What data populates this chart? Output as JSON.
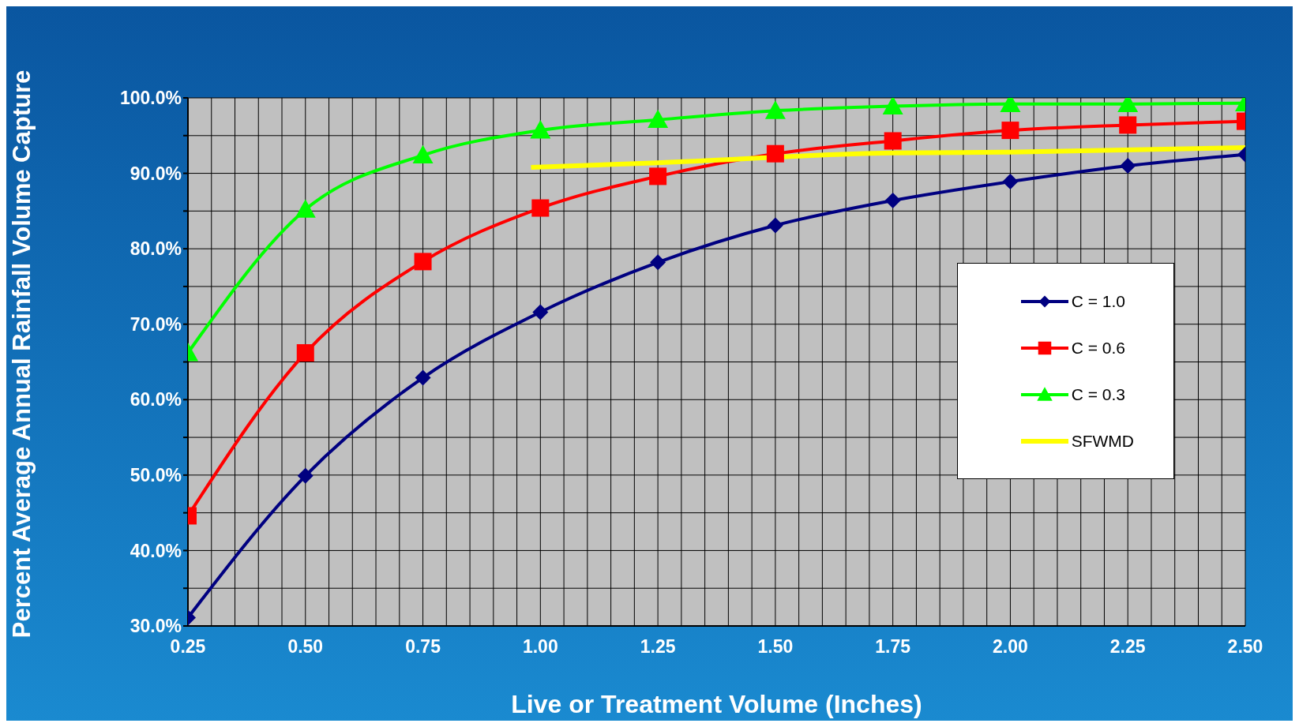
{
  "chart_data": {
    "type": "line",
    "xlabel": "Live or Treatment Volume (Inches)",
    "ylabel": "Percent Average Annual Rainfall Volume Capture",
    "x": [
      0.25,
      0.5,
      0.75,
      1.0,
      1.25,
      1.5,
      1.75,
      2.0,
      2.25,
      2.5
    ],
    "series": [
      {
        "name": "C = 1.0",
        "color": "#000080",
        "marker": "diamond",
        "values": [
          31.1,
          49.9,
          62.9,
          71.6,
          78.2,
          83.1,
          86.4,
          88.9,
          91.0,
          92.5
        ]
      },
      {
        "name": "C = 0.6",
        "color": "#ff0000",
        "marker": "square",
        "values": [
          44.6,
          66.2,
          78.3,
          85.4,
          89.6,
          92.6,
          94.3,
          95.7,
          96.4,
          96.9
        ]
      },
      {
        "name": "C = 0.3",
        "color": "#00ff00",
        "marker": "triangle",
        "values": [
          66.2,
          85.2,
          92.4,
          95.7,
          97.1,
          98.3,
          98.9,
          99.2,
          99.2,
          99.3
        ]
      },
      {
        "name": "SFWMD",
        "color": "#ffff00",
        "marker": "none",
        "x": [
          0.98,
          1.25,
          1.75,
          2.0,
          2.5
        ],
        "values": [
          90.8,
          91.4,
          92.7,
          92.8,
          93.4
        ]
      }
    ],
    "xlim": [
      0.25,
      2.5
    ],
    "xticks": [
      {
        "value": 0.25,
        "label": "0.25"
      },
      {
        "value": 0.3,
        "label": null
      },
      {
        "value": 0.35,
        "label": null
      },
      {
        "value": 0.4,
        "label": null
      },
      {
        "value": 0.45,
        "label": null
      },
      {
        "value": 0.5,
        "label": "0.50"
      },
      {
        "value": 0.55,
        "label": null
      },
      {
        "value": 0.6,
        "label": null
      },
      {
        "value": 0.65,
        "label": null
      },
      {
        "value": 0.7,
        "label": null
      },
      {
        "value": 0.75,
        "label": "0.75"
      },
      {
        "value": 0.8,
        "label": null
      },
      {
        "value": 0.85,
        "label": null
      },
      {
        "value": 0.9,
        "label": null
      },
      {
        "value": 0.95,
        "label": null
      },
      {
        "value": 1.0,
        "label": "1.00"
      },
      {
        "value": 1.05,
        "label": null
      },
      {
        "value": 1.1,
        "label": null
      },
      {
        "value": 1.15,
        "label": null
      },
      {
        "value": 1.2,
        "label": null
      },
      {
        "value": 1.25,
        "label": "1.25"
      },
      {
        "value": 1.3,
        "label": null
      },
      {
        "value": 1.35,
        "label": null
      },
      {
        "value": 1.4,
        "label": null
      },
      {
        "value": 1.45,
        "label": null
      },
      {
        "value": 1.5,
        "label": "1.50"
      },
      {
        "value": 1.55,
        "label": null
      },
      {
        "value": 1.6,
        "label": null
      },
      {
        "value": 1.65,
        "label": null
      },
      {
        "value": 1.7,
        "label": null
      },
      {
        "value": 1.75,
        "label": "1.75"
      },
      {
        "value": 1.8,
        "label": null
      },
      {
        "value": 1.85,
        "label": null
      },
      {
        "value": 1.9,
        "label": null
      },
      {
        "value": 1.95,
        "label": null
      },
      {
        "value": 2.0,
        "label": "2.00"
      },
      {
        "value": 2.05,
        "label": null
      },
      {
        "value": 2.1,
        "label": null
      },
      {
        "value": 2.15,
        "label": null
      },
      {
        "value": 2.2,
        "label": null
      },
      {
        "value": 2.25,
        "label": "2.25"
      },
      {
        "value": 2.3,
        "label": null
      },
      {
        "value": 2.35,
        "label": null
      },
      {
        "value": 2.4,
        "label": null
      },
      {
        "value": 2.45,
        "label": null
      },
      {
        "value": 2.5,
        "label": "2.50"
      }
    ],
    "ylim": [
      30,
      100
    ],
    "yticks": [
      {
        "value": 30,
        "label": "30.0%"
      },
      {
        "value": 35,
        "label": null
      },
      {
        "value": 40,
        "label": "40.0%"
      },
      {
        "value": 45,
        "label": null
      },
      {
        "value": 50,
        "label": "50.0%"
      },
      {
        "value": 55,
        "label": null
      },
      {
        "value": 60,
        "label": "60.0%"
      },
      {
        "value": 65,
        "label": null
      },
      {
        "value": 70,
        "label": "70.0%"
      },
      {
        "value": 75,
        "label": null
      },
      {
        "value": 80,
        "label": "80.0%"
      },
      {
        "value": 85,
        "label": null
      },
      {
        "value": 90,
        "label": "90.0%"
      },
      {
        "value": 95,
        "label": null
      },
      {
        "value": 100,
        "label": "100.0%"
      }
    ],
    "grid": true,
    "legend": "right",
    "line_style": "solid"
  }
}
